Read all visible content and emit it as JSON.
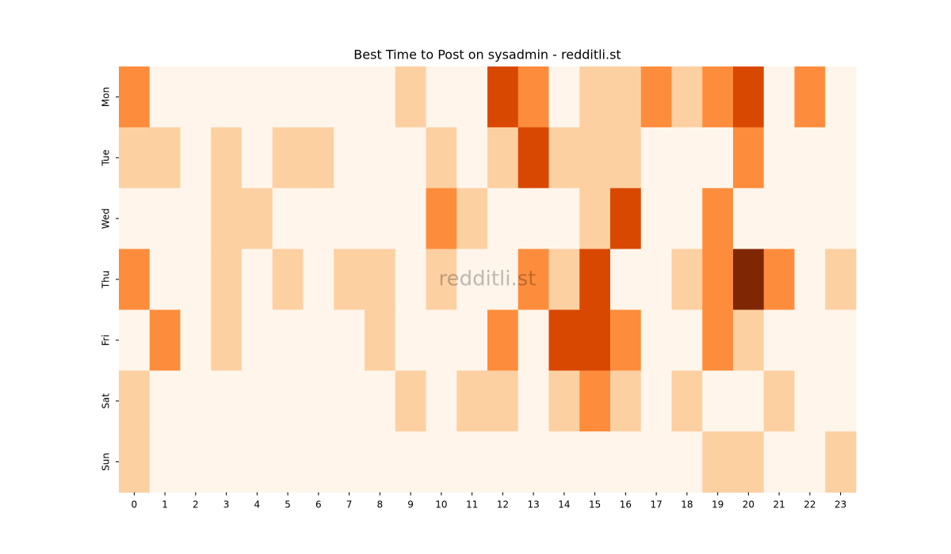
{
  "chart_data": {
    "type": "heatmap",
    "title": "Best Time to Post on sysadmin - redditli.st",
    "watermark": "redditli.st",
    "x": [
      0,
      1,
      2,
      3,
      4,
      5,
      6,
      7,
      8,
      9,
      10,
      11,
      12,
      13,
      14,
      15,
      16,
      17,
      18,
      19,
      20,
      21,
      22,
      23
    ],
    "y": [
      "Mon",
      "Tue",
      "Wed",
      "Thu",
      "Fri",
      "Sat",
      "Sun"
    ],
    "values": [
      [
        2,
        0,
        0,
        0,
        0,
        0,
        0,
        0,
        0,
        1,
        0,
        0,
        3,
        2,
        0,
        1,
        1,
        2,
        1,
        2,
        3,
        0,
        2,
        0
      ],
      [
        1,
        1,
        0,
        1,
        0,
        1,
        1,
        0,
        0,
        0,
        1,
        0,
        1,
        3,
        1,
        1,
        1,
        0,
        0,
        0,
        2,
        0,
        0,
        0
      ],
      [
        0,
        0,
        0,
        1,
        1,
        0,
        0,
        0,
        0,
        0,
        2,
        1,
        0,
        0,
        0,
        1,
        3,
        0,
        0,
        2,
        0,
        0,
        0,
        0
      ],
      [
        2,
        0,
        0,
        1,
        0,
        1,
        0,
        1,
        1,
        0,
        1,
        0,
        0,
        2,
        1,
        3,
        0,
        0,
        1,
        2,
        4,
        2,
        0,
        1
      ],
      [
        0,
        2,
        0,
        1,
        0,
        0,
        0,
        0,
        1,
        0,
        0,
        0,
        2,
        0,
        3,
        3,
        2,
        0,
        0,
        2,
        1,
        0,
        0,
        0
      ],
      [
        1,
        0,
        0,
        0,
        0,
        0,
        0,
        0,
        0,
        1,
        0,
        1,
        1,
        0,
        1,
        2,
        1,
        0,
        1,
        0,
        0,
        1,
        0,
        0
      ],
      [
        1,
        0,
        0,
        0,
        0,
        0,
        0,
        0,
        0,
        0,
        0,
        0,
        0,
        0,
        0,
        0,
        0,
        0,
        0,
        1,
        1,
        0,
        0,
        1
      ]
    ],
    "colormap": [
      "#fff5eb",
      "#fdd0a2",
      "#fd8d3c",
      "#d94801",
      "#7f2704"
    ],
    "clim": [
      0,
      4
    ]
  }
}
